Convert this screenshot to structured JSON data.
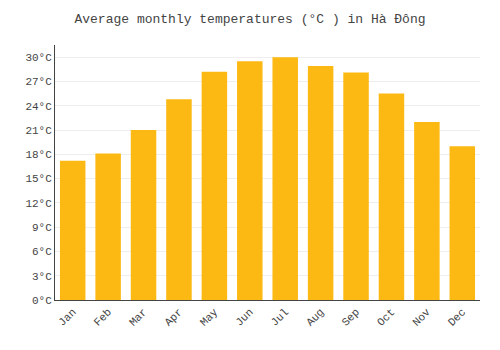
{
  "chart_data": {
    "type": "bar",
    "title": "Average monthly temperatures (°C ) in Hà Đông",
    "categories": [
      "Jan",
      "Feb",
      "Mar",
      "Apr",
      "May",
      "Jun",
      "Jul",
      "Aug",
      "Sep",
      "Oct",
      "Nov",
      "Dec"
    ],
    "values": [
      17.2,
      18.1,
      21.0,
      24.8,
      28.2,
      29.5,
      30.0,
      28.9,
      28.1,
      25.5,
      22.0,
      19.0
    ],
    "color": "#FDB913",
    "ylim": [
      0,
      31.5
    ],
    "yticks": [
      {
        "value": 0,
        "label": "0°C"
      },
      {
        "value": 3,
        "label": "3°C"
      },
      {
        "value": 6,
        "label": "6°C"
      },
      {
        "value": 9,
        "label": "9°C"
      },
      {
        "value": 12,
        "label": "12°C"
      },
      {
        "value": 15,
        "label": "15°C"
      },
      {
        "value": 18,
        "label": "18°C"
      },
      {
        "value": 21,
        "label": "21°C"
      },
      {
        "value": 24,
        "label": "24°C"
      },
      {
        "value": 27,
        "label": "27°C"
      },
      {
        "value": 30,
        "label": "30°C"
      }
    ],
    "grid": true
  }
}
